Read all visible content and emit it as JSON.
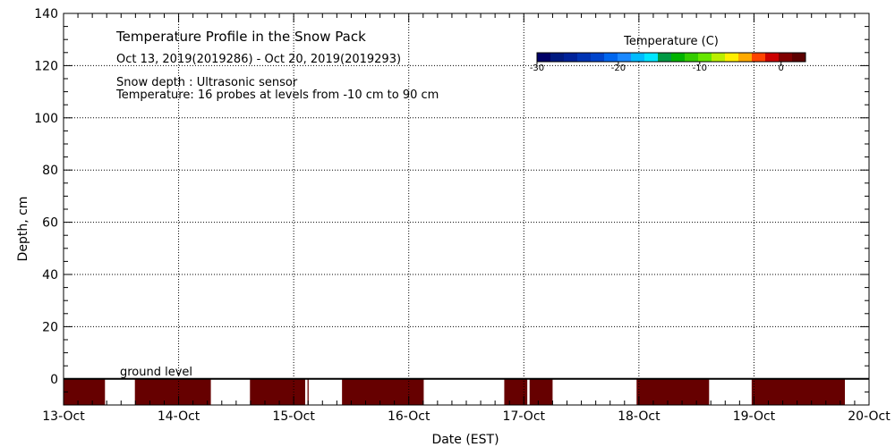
{
  "chart_data": {
    "type": "heatmap",
    "title": "Temperature Profile in the Snow Pack",
    "subtitle": "Oct 13, 2019(2019286) - Oct 20, 2019(2019293)",
    "notes": [
      "Snow depth : Ultrasonic sensor",
      "Temperature: 16 probes at levels from -10 cm to 90 cm"
    ],
    "ground_label": "ground level",
    "xlabel": "Date (EST)",
    "ylabel": "Depth, cm",
    "x_ticks": [
      "13-Oct",
      "14-Oct",
      "15-Oct",
      "16-Oct",
      "17-Oct",
      "18-Oct",
      "19-Oct",
      "20-Oct"
    ],
    "xlim_days": [
      0,
      7
    ],
    "ylim": [
      -10,
      140
    ],
    "y_ticks": [
      0,
      20,
      40,
      60,
      80,
      100,
      120,
      140
    ],
    "grid": true,
    "colorbar": {
      "title": "Temperature (C)",
      "range": [
        -30,
        3
      ],
      "tick_labels": [
        "-30",
        "-20",
        "-10",
        "0"
      ],
      "tick_values": [
        -30,
        -20,
        -10,
        0
      ],
      "colors": [
        "#000066",
        "#001a80",
        "#002299",
        "#0033b3",
        "#0044cc",
        "#0066ee",
        "#1a88ff",
        "#00bbff",
        "#00e6ff",
        "#009944",
        "#00b300",
        "#33cc00",
        "#66e600",
        "#bbee00",
        "#ffee00",
        "#ffaa00",
        "#ff4400",
        "#cc0000",
        "#800000",
        "#5c0000"
      ]
    },
    "measured_intervals": {
      "depth_range": [
        -10,
        0
      ],
      "value": "warmest",
      "color": "#660000",
      "start_end_days": [
        [
          0.0,
          0.36
        ],
        [
          0.62,
          1.28
        ],
        [
          1.62,
          2.1
        ],
        [
          2.12,
          2.13
        ],
        [
          2.42,
          3.13
        ],
        [
          3.83,
          4.03
        ],
        [
          4.05,
          4.25
        ],
        [
          4.98,
          5.61
        ],
        [
          5.98,
          6.79
        ]
      ]
    }
  }
}
